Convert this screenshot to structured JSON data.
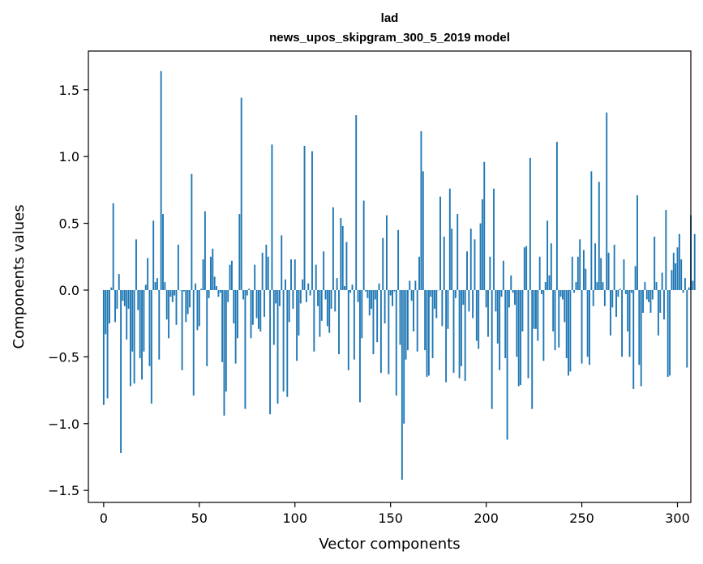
{
  "chart_data": {
    "type": "bar",
    "title": "lad",
    "subtitle": "news_upos_skipgram_300_5_2019 model",
    "xlabel": "Vector components",
    "ylabel": "Components values",
    "xlim": [
      -8,
      307
    ],
    "ylim": [
      -1.59,
      1.79
    ],
    "xticks": [
      0,
      50,
      100,
      150,
      200,
      250,
      300
    ],
    "yticks": [
      -1.5,
      -1.0,
      -0.5,
      0.0,
      0.5,
      1.0,
      1.5
    ],
    "ytick_labels": [
      "−1.5",
      "−1.0",
      "−0.5",
      "0.0",
      "0.5",
      "1.0",
      "1.5"
    ],
    "grid": false,
    "bar_color": "#1f77b4",
    "values": [
      -0.86,
      -0.33,
      -0.81,
      -0.25,
      0.02,
      0.65,
      -0.24,
      -0.14,
      0.12,
      -1.22,
      -0.08,
      -0.12,
      -0.37,
      -0.14,
      -0.72,
      -0.46,
      -0.7,
      0.38,
      -0.15,
      -0.51,
      -0.67,
      -0.46,
      0.04,
      0.24,
      -0.57,
      -0.85,
      0.52,
      0.06,
      0.09,
      -0.52,
      1.64,
      0.57,
      0.06,
      -0.22,
      -0.36,
      -0.05,
      -0.09,
      -0.04,
      -0.26,
      0.34,
      0.0,
      -0.6,
      -0.01,
      -0.24,
      -0.18,
      -0.13,
      0.87,
      -0.79,
      0.05,
      -0.3,
      -0.27,
      0.01,
      0.23,
      0.59,
      -0.57,
      -0.06,
      0.25,
      0.31,
      0.1,
      0.03,
      -0.05,
      -0.02,
      -0.54,
      -0.94,
      -0.76,
      -0.09,
      0.19,
      0.22,
      -0.25,
      -0.55,
      -0.36,
      0.57,
      1.44,
      -0.07,
      -0.89,
      -0.04,
      0.01,
      -0.36,
      -0.26,
      0.19,
      -0.21,
      -0.29,
      -0.31,
      0.28,
      -0.2,
      0.34,
      0.25,
      -0.93,
      1.09,
      -0.41,
      -0.1,
      -0.85,
      -0.12,
      0.41,
      -0.76,
      0.08,
      -0.8,
      -0.24,
      0.23,
      -0.14,
      0.23,
      -0.53,
      -0.34,
      -0.1,
      0.08,
      1.08,
      -0.09,
      0.05,
      -0.04,
      1.04,
      -0.46,
      0.19,
      -0.12,
      -0.35,
      -0.23,
      0.29,
      -0.07,
      -0.27,
      -0.32,
      -0.14,
      0.62,
      -0.16,
      0.09,
      -0.48,
      0.54,
      0.48,
      0.03,
      0.36,
      -0.6,
      -0.02,
      0.04,
      -0.52,
      1.31,
      -0.09,
      -0.84,
      -0.36,
      0.67,
      -0.01,
      -0.06,
      -0.19,
      -0.14,
      -0.48,
      -0.07,
      -0.39,
      0.05,
      -0.62,
      0.39,
      -0.25,
      0.56,
      -0.63,
      -0.04,
      -0.12,
      -0.01,
      -0.79,
      0.45,
      -0.41,
      -1.42,
      -1.0,
      -0.52,
      -0.45,
      0.07,
      -0.08,
      -0.31,
      0.07,
      -0.46,
      0.25,
      1.19,
      0.89,
      -0.45,
      -0.65,
      -0.64,
      -0.05,
      -0.51,
      -0.14,
      -0.21,
      0.0,
      0.7,
      -0.27,
      0.4,
      -0.69,
      -0.29,
      0.76,
      0.46,
      -0.62,
      -0.06,
      0.57,
      -0.66,
      -0.57,
      -0.11,
      -0.68,
      0.29,
      -0.16,
      0.46,
      -0.21,
      0.38,
      -0.38,
      -0.44,
      0.5,
      0.68,
      0.96,
      -0.13,
      -0.35,
      0.25,
      -0.89,
      0.76,
      -0.16,
      -0.4,
      -0.6,
      -0.05,
      0.22,
      -0.51,
      -1.12,
      -0.13,
      0.11,
      -0.02,
      -0.11,
      -0.5,
      -0.72,
      -0.71,
      -0.31,
      0.32,
      0.33,
      -0.66,
      0.99,
      -0.89,
      -0.29,
      -0.29,
      -0.38,
      0.25,
      -0.03,
      -0.53,
      0.06,
      0.52,
      0.11,
      0.35,
      -0.31,
      -0.45,
      1.11,
      -0.43,
      -0.05,
      -0.07,
      -0.24,
      -0.51,
      -0.64,
      -0.61,
      0.25,
      -0.02,
      0.06,
      0.25,
      0.38,
      -0.55,
      0.3,
      0.16,
      -0.5,
      -0.56,
      0.89,
      -0.12,
      0.35,
      0.06,
      0.81,
      0.24,
      0.06,
      -0.12,
      1.33,
      0.28,
      -0.34,
      -0.13,
      0.34,
      -0.2,
      -0.05,
      0.01,
      -0.5,
      0.23,
      -0.03,
      -0.31,
      -0.5,
      -0.02,
      -0.74,
      0.18,
      0.71,
      -0.56,
      -0.72,
      -0.17,
      0.06,
      -0.07,
      -0.09,
      -0.17,
      -0.07,
      0.4,
      0.06,
      -0.34,
      -0.17,
      0.13,
      -0.22,
      0.6,
      -0.65,
      -0.64,
      0.15,
      0.28,
      0.2,
      0.32,
      0.42,
      0.23,
      -0.02,
      0.09,
      -0.58,
      0.02,
      0.56,
      0.07,
      0.42
    ]
  }
}
